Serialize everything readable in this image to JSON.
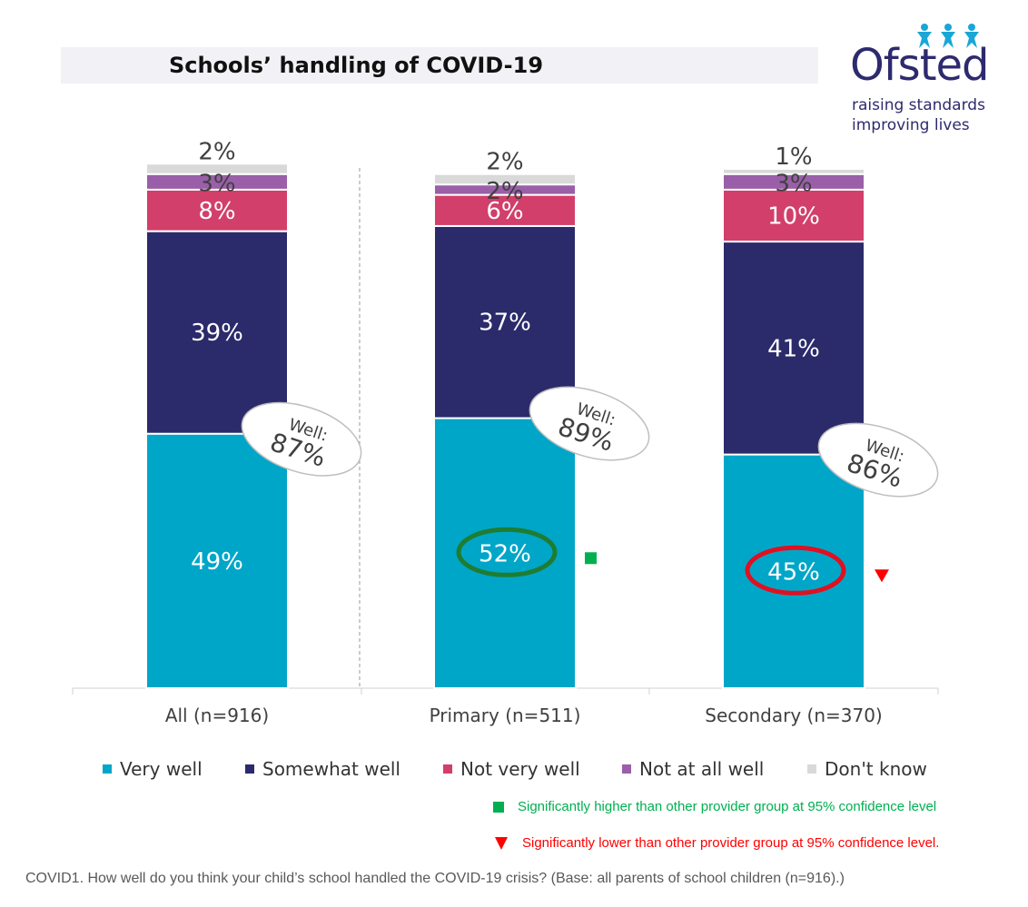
{
  "title": "Schools’ handling of COVID-19",
  "logo": {
    "word": "Ofsted",
    "tagline_1": "raising standards",
    "tagline_2": "improving lives",
    "color": "#2e2a6e",
    "star_color": "#1aa6d6"
  },
  "chart_data": {
    "type": "bar",
    "stacked": true,
    "percent_scale": true,
    "title": "Schools’ handling of COVID-19",
    "categories": [
      "All (n=916)",
      "Primary (n=511)",
      "Secondary (n=370)"
    ],
    "series": [
      {
        "name": "Very well",
        "color": "#00a6c8",
        "values": [
          49,
          52,
          45
        ],
        "label_color": "#ffffff"
      },
      {
        "name": "Somewhat well",
        "color": "#2b2a6b",
        "values": [
          39,
          37,
          41
        ],
        "label_color": "#ffffff"
      },
      {
        "name": "Not very well",
        "color": "#d23f6a",
        "values": [
          8,
          6,
          10
        ],
        "label_color": "#ffffff"
      },
      {
        "name": "Not at all well",
        "color": "#9a5fa8",
        "values": [
          3,
          2,
          3
        ],
        "label_color": "#404040"
      },
      {
        "name": "Don't know",
        "color": "#d9d9d9",
        "values": [
          2,
          2,
          1
        ],
        "label_color": "#404040"
      }
    ],
    "labels": [
      [
        "49%",
        "52%",
        "45%"
      ],
      [
        "39%",
        "37%",
        "41%"
      ],
      [
        "8%",
        "6%",
        "10%"
      ],
      [
        "3%",
        "2%",
        "3%"
      ],
      [
        "2%",
        "2%",
        "1%"
      ]
    ],
    "well_callouts": {
      "prefix": "Well:",
      "values": [
        "87%",
        "89%",
        "86%"
      ]
    },
    "highlights": [
      {
        "category_index": 1,
        "series_index": 0,
        "ring_color": "#1e7d32",
        "marker": "square",
        "marker_color": "#00b050"
      },
      {
        "category_index": 2,
        "series_index": 0,
        "ring_color": "#e01020",
        "marker": "triangle-down",
        "marker_color": "#ff0000"
      }
    ],
    "legend_position": "bottom",
    "grid": false
  },
  "significance": {
    "higher": "Significantly higher than other provider group at 95% confidence level",
    "higher_color": "#00b050",
    "lower": "Significantly lower than other provider group at 95% confidence level.",
    "lower_color": "#ff0000"
  },
  "footnote": "COVID1. How well do you think your child’s school handled the COVID-19 crisis? (Base: all parents of school children (n=916).)"
}
